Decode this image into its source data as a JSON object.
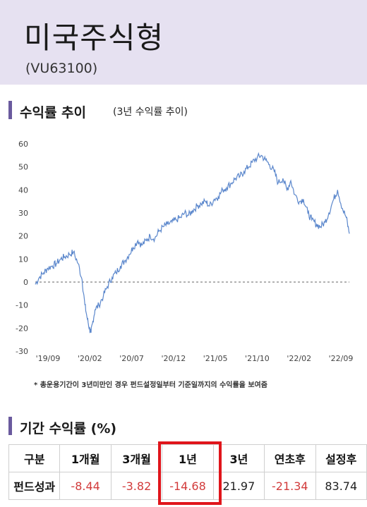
{
  "fund": {
    "name": "미국주식형",
    "code": "(VU63100)"
  },
  "chart_section": {
    "title": "수익률 추이",
    "subtitle": "(3년 수익률 추이)"
  },
  "chart_data": {
    "type": "line",
    "title": "",
    "xlabel": "",
    "ylabel": "",
    "x_tick_labels": [
      "'19/09",
      "'20/02",
      "'20/07",
      "'20/12",
      "'21/05",
      "'21/10",
      "'22/02",
      "'22/09"
    ],
    "y_ticks": [
      60,
      50,
      40,
      30,
      20,
      10,
      0,
      -10,
      -20,
      -30
    ],
    "ylim": [
      -30,
      60
    ],
    "grid": false,
    "zero_line": "dashed",
    "series": [
      {
        "x": [
          "2019-09-01",
          "2019-09-15",
          "2019-10-01",
          "2019-10-15",
          "2019-11-01",
          "2019-11-15",
          "2019-12-01",
          "2019-12-15",
          "2020-01-01",
          "2020-01-15",
          "2020-02-01",
          "2020-02-15",
          "2020-02-25",
          "2020-03-05",
          "2020-03-12",
          "2020-03-18",
          "2020-03-23",
          "2020-04-01",
          "2020-04-15",
          "2020-05-01",
          "2020-05-15",
          "2020-06-01",
          "2020-06-15",
          "2020-07-01",
          "2020-07-15",
          "2020-08-01",
          "2020-08-15",
          "2020-09-01",
          "2020-09-15",
          "2020-10-01",
          "2020-10-15",
          "2020-11-01",
          "2020-11-15",
          "2020-12-01",
          "2020-12-15",
          "2021-01-01",
          "2021-01-15",
          "2021-02-01",
          "2021-02-15",
          "2021-03-01",
          "2021-03-15",
          "2021-04-01",
          "2021-04-15",
          "2021-05-01",
          "2021-05-15",
          "2021-06-01",
          "2021-06-15",
          "2021-07-01",
          "2021-07-15",
          "2021-08-01",
          "2021-08-15",
          "2021-09-01",
          "2021-09-15",
          "2021-10-01",
          "2021-10-15",
          "2021-11-01",
          "2021-11-15",
          "2021-12-01",
          "2021-12-15",
          "2022-01-01",
          "2022-01-15",
          "2022-02-01",
          "2022-02-15",
          "2022-03-01",
          "2022-03-15",
          "2022-04-01",
          "2022-04-15",
          "2022-05-01",
          "2022-05-15",
          "2022-06-01",
          "2022-06-15",
          "2022-07-01",
          "2022-07-15",
          "2022-08-01",
          "2022-08-15",
          "2022-09-01",
          "2022-09-15",
          "2022-09-26"
        ],
        "values": [
          -1,
          2,
          4,
          6,
          7,
          8,
          10,
          11,
          12,
          13,
          8,
          1,
          -10,
          -16,
          -20,
          -22,
          -18,
          -12,
          -10,
          -6,
          -2,
          2,
          4,
          7,
          9,
          12,
          15,
          18,
          16,
          18,
          20,
          19,
          22,
          24,
          25,
          26,
          27,
          28,
          30,
          29,
          31,
          33,
          34,
          35,
          33,
          36,
          37,
          40,
          41,
          43,
          45,
          46,
          48,
          50,
          52,
          54,
          55,
          53,
          51,
          48,
          43,
          45,
          40,
          44,
          38,
          35,
          36,
          30,
          27,
          25,
          24,
          26,
          30,
          36,
          40,
          32,
          28,
          21
        ]
      }
    ]
  },
  "period_section": {
    "title": "기간 수익률 (%)"
  },
  "footnote": "* 총운용기간이 3년미만인 경우 펀드설정일부터 기준일까지의 수익률을 보여줌",
  "table": {
    "headers": [
      "구분",
      "1개월",
      "3개월",
      "1년",
      "3년",
      "연초후",
      "설정후"
    ],
    "row_label": "펀드성과",
    "values": [
      "-8.44",
      "-3.82",
      "-14.68",
      "21.97",
      "-21.34",
      "83.74"
    ],
    "highlight_column": "1년",
    "colors": {
      "negative": "#d23b3b",
      "positive": "#222222",
      "highlight_border": "#e0151b",
      "line": "#5b87cc"
    }
  }
}
